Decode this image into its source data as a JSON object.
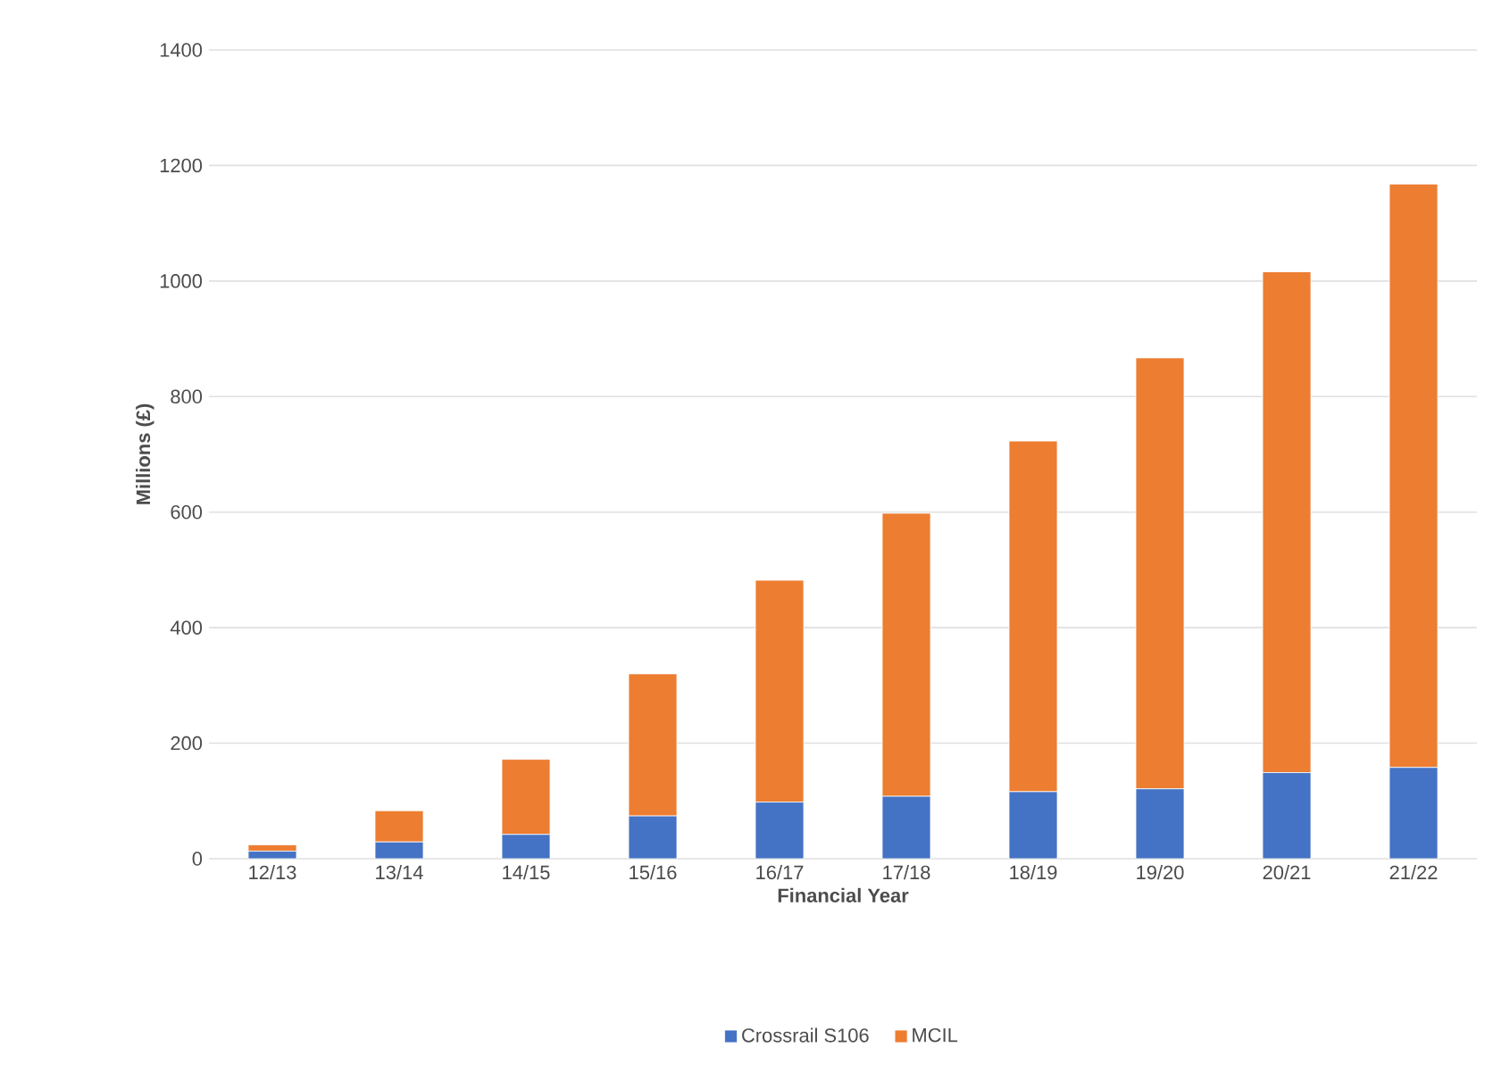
{
  "chart_data": {
    "type": "bar",
    "stacked": true,
    "xlabel": "Financial Year",
    "ylabel": "Millions (£)",
    "categories": [
      "12/13",
      "13/14",
      "14/15",
      "15/16",
      "16/17",
      "17/18",
      "18/19",
      "19/20",
      "20/21",
      "21/22"
    ],
    "series": [
      {
        "name": "Crossrail S106",
        "color": "#4472c4",
        "values": [
          13,
          29,
          42,
          74,
          98,
          108,
          116,
          121,
          149,
          158
        ]
      },
      {
        "name": "MCIL",
        "color": "#ed7d31",
        "values": [
          11,
          54,
          130,
          246,
          384,
          490,
          607,
          746,
          867,
          1010
        ]
      }
    ],
    "ylim": [
      0,
      1400
    ],
    "yticks": [
      0,
      200,
      400,
      600,
      800,
      1000,
      1200,
      1400
    ],
    "grid": "y",
    "legend": "bottom"
  }
}
